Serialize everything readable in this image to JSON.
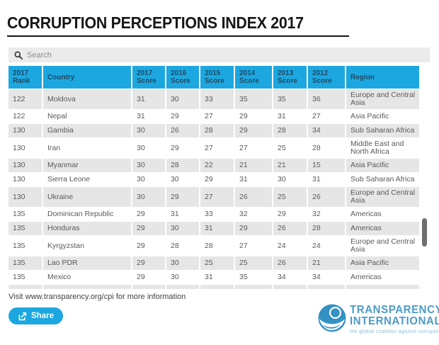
{
  "title": "CORRUPTION PERCEPTIONS INDEX 2017",
  "search": {
    "placeholder": "Search"
  },
  "table": {
    "columns": [
      "2017 Rank",
      "Country",
      "2017 Score",
      "2016 Score",
      "2015 Score",
      "2014 Score",
      "2013 Score",
      "2012 Score",
      "Region"
    ],
    "rows": [
      {
        "rank": "122",
        "country": "Moldova",
        "s2017": "31",
        "s2016": "30",
        "s2015": "33",
        "s2014": "35",
        "s2013": "35",
        "s2012": "36",
        "region": "Europe and Central Asia"
      },
      {
        "rank": "122",
        "country": "Nepal",
        "s2017": "31",
        "s2016": "29",
        "s2015": "27",
        "s2014": "29",
        "s2013": "31",
        "s2012": "27",
        "region": "Asia Pacific"
      },
      {
        "rank": "130",
        "country": "Gambia",
        "s2017": "30",
        "s2016": "26",
        "s2015": "28",
        "s2014": "29",
        "s2013": "28",
        "s2012": "34",
        "region": "Sub Saharan Africa"
      },
      {
        "rank": "130",
        "country": "Iran",
        "s2017": "30",
        "s2016": "29",
        "s2015": "27",
        "s2014": "27",
        "s2013": "25",
        "s2012": "28",
        "region": "Middle East and North Africa"
      },
      {
        "rank": "130",
        "country": "Myanmar",
        "s2017": "30",
        "s2016": "28",
        "s2015": "22",
        "s2014": "21",
        "s2013": "21",
        "s2012": "15",
        "region": "Asia Pacific"
      },
      {
        "rank": "130",
        "country": "Sierra Leone",
        "s2017": "30",
        "s2016": "30",
        "s2015": "29",
        "s2014": "31",
        "s2013": "30",
        "s2012": "31",
        "region": "Sub Saharan Africa"
      },
      {
        "rank": "130",
        "country": "Ukraine",
        "s2017": "30",
        "s2016": "29",
        "s2015": "27",
        "s2014": "26",
        "s2013": "25",
        "s2012": "26",
        "region": "Europe and Central Asia"
      },
      {
        "rank": "135",
        "country": "Dominican Republic",
        "s2017": "29",
        "s2016": "31",
        "s2015": "33",
        "s2014": "32",
        "s2013": "29",
        "s2012": "32",
        "region": "Americas"
      },
      {
        "rank": "135",
        "country": "Honduras",
        "s2017": "29",
        "s2016": "30",
        "s2015": "31",
        "s2014": "29",
        "s2013": "26",
        "s2012": "28",
        "region": "Americas"
      },
      {
        "rank": "135",
        "country": "Kyrgyzstan",
        "s2017": "29",
        "s2016": "28",
        "s2015": "28",
        "s2014": "27",
        "s2013": "24",
        "s2012": "24",
        "region": "Europe and Central Asia"
      },
      {
        "rank": "135",
        "country": "Lao PDR",
        "s2017": "29",
        "s2016": "30",
        "s2015": "25",
        "s2014": "25",
        "s2013": "26",
        "s2012": "21",
        "region": "Asia Pacific"
      },
      {
        "rank": "135",
        "country": "Mexico",
        "s2017": "29",
        "s2016": "30",
        "s2015": "31",
        "s2014": "35",
        "s2013": "34",
        "s2012": "34",
        "region": "Americas"
      }
    ]
  },
  "footer": {
    "note": "Visit www.transparency.org/cpi for more information",
    "share_label": "Share"
  },
  "logo": {
    "line1": "TRANSPARENCY",
    "line2": "INTERNATIONAL",
    "tagline": "the global coalition against corruption"
  },
  "colors": {
    "accent_blue": "#1CA7E0",
    "header_text": "#1D4A63",
    "row_alt_bg": "#E6E6E6",
    "row_text": "#5A5A5A",
    "logo_blue": "#4D9BC7",
    "logo_tagline": "#8FBFDB",
    "scrollbar_thumb": "#6F6F6F"
  }
}
